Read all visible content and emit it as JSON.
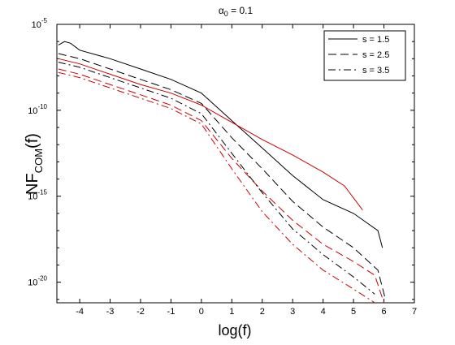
{
  "chart_data": {
    "type": "line",
    "title": "α0 = 0.1",
    "title_parts": {
      "base": "α",
      "sub": "0",
      "rest": " = 0.1"
    },
    "xlabel": "log(f)",
    "ylabel": "NFCOM(f)",
    "ylabel_parts": {
      "base": "NF",
      "sub": "COM",
      "rest": "(f)"
    },
    "xlim": [
      -4.75,
      7
    ],
    "ylim_exp": [
      -21.2,
      -5
    ],
    "y_scale": "log",
    "x_ticks": [
      -4,
      -3,
      -2,
      -1,
      0,
      1,
      2,
      3,
      4,
      5,
      6,
      7
    ],
    "y_ticks": [
      {
        "base": "10",
        "exp": "-5",
        "value_exp": -5
      },
      {
        "base": "10",
        "exp": "-10",
        "value_exp": -10
      },
      {
        "base": "10",
        "exp": "-15",
        "value_exp": -15
      },
      {
        "base": "10",
        "exp": "-20",
        "value_exp": -20
      }
    ],
    "grid": false,
    "legend_position": "top-right",
    "legend": [
      {
        "label": "s = 1.5",
        "dash": "solid"
      },
      {
        "label": "s = 2.5",
        "dash": "dashed"
      },
      {
        "label": "s = 3.5",
        "dash": "dashdot"
      }
    ],
    "series": [
      {
        "s": "1.5",
        "color": "#000000",
        "dash": "solid",
        "x": [
          -4.7,
          -4.5,
          -4.3,
          -4,
          -3,
          -2,
          -1,
          0,
          1,
          2,
          3,
          4,
          5,
          5.8,
          5.95
        ],
        "y": [
          -6.2,
          -6.0,
          -6.1,
          -6.5,
          -7.0,
          -7.6,
          -8.2,
          -9.0,
          -10.6,
          -12.2,
          -13.8,
          -15.2,
          -16.0,
          -17.0,
          -18.0
        ]
      },
      {
        "s": "1.5",
        "color": "#cc0000",
        "dash": "solid",
        "x": [
          -4.7,
          -4,
          -3,
          -2,
          -1,
          0,
          1,
          2,
          3,
          4,
          4.7,
          5.3
        ],
        "y": [
          -7.0,
          -7.3,
          -7.9,
          -8.5,
          -9.0,
          -9.7,
          -10.7,
          -11.7,
          -12.6,
          -13.6,
          -14.4,
          -15.8
        ]
      },
      {
        "s": "2.5",
        "color": "#000000",
        "dash": "dashed",
        "x": [
          -4.7,
          -4,
          -3,
          -2,
          -1,
          0,
          1,
          2,
          3,
          4,
          5,
          5.8,
          6.05
        ],
        "y": [
          -6.7,
          -7.0,
          -7.6,
          -8.2,
          -8.8,
          -9.6,
          -11.6,
          -13.4,
          -15.3,
          -16.8,
          -18.0,
          -19.3,
          -21.0
        ]
      },
      {
        "s": "2.5",
        "color": "#cc0000",
        "dash": "dashed",
        "x": [
          -4.7,
          -4,
          -3,
          -2,
          -1,
          0,
          1,
          2,
          3,
          4,
          5,
          5.7,
          6.0
        ],
        "y": [
          -7.6,
          -7.9,
          -8.5,
          -9.1,
          -9.7,
          -10.6,
          -12.8,
          -14.7,
          -16.4,
          -17.8,
          -18.8,
          -19.6,
          -21.2
        ]
      },
      {
        "s": "3.5",
        "color": "#000000",
        "dash": "dashdot",
        "x": [
          -4.7,
          -4,
          -3,
          -2,
          -1,
          0,
          1,
          2,
          3,
          4,
          5,
          5.7
        ],
        "y": [
          -7.2,
          -7.5,
          -8.1,
          -8.7,
          -9.3,
          -10.2,
          -12.5,
          -14.8,
          -16.9,
          -18.4,
          -19.7,
          -20.7
        ]
      },
      {
        "s": "3.5",
        "color": "#cc0000",
        "dash": "dashdot",
        "x": [
          -4.7,
          -4,
          -3,
          -2,
          -1,
          0,
          1,
          2,
          3,
          4,
          5,
          5.7
        ],
        "y": [
          -7.8,
          -8.1,
          -8.7,
          -9.3,
          -9.9,
          -10.8,
          -13.4,
          -15.9,
          -17.8,
          -19.3,
          -20.4,
          -21.2
        ]
      }
    ]
  }
}
